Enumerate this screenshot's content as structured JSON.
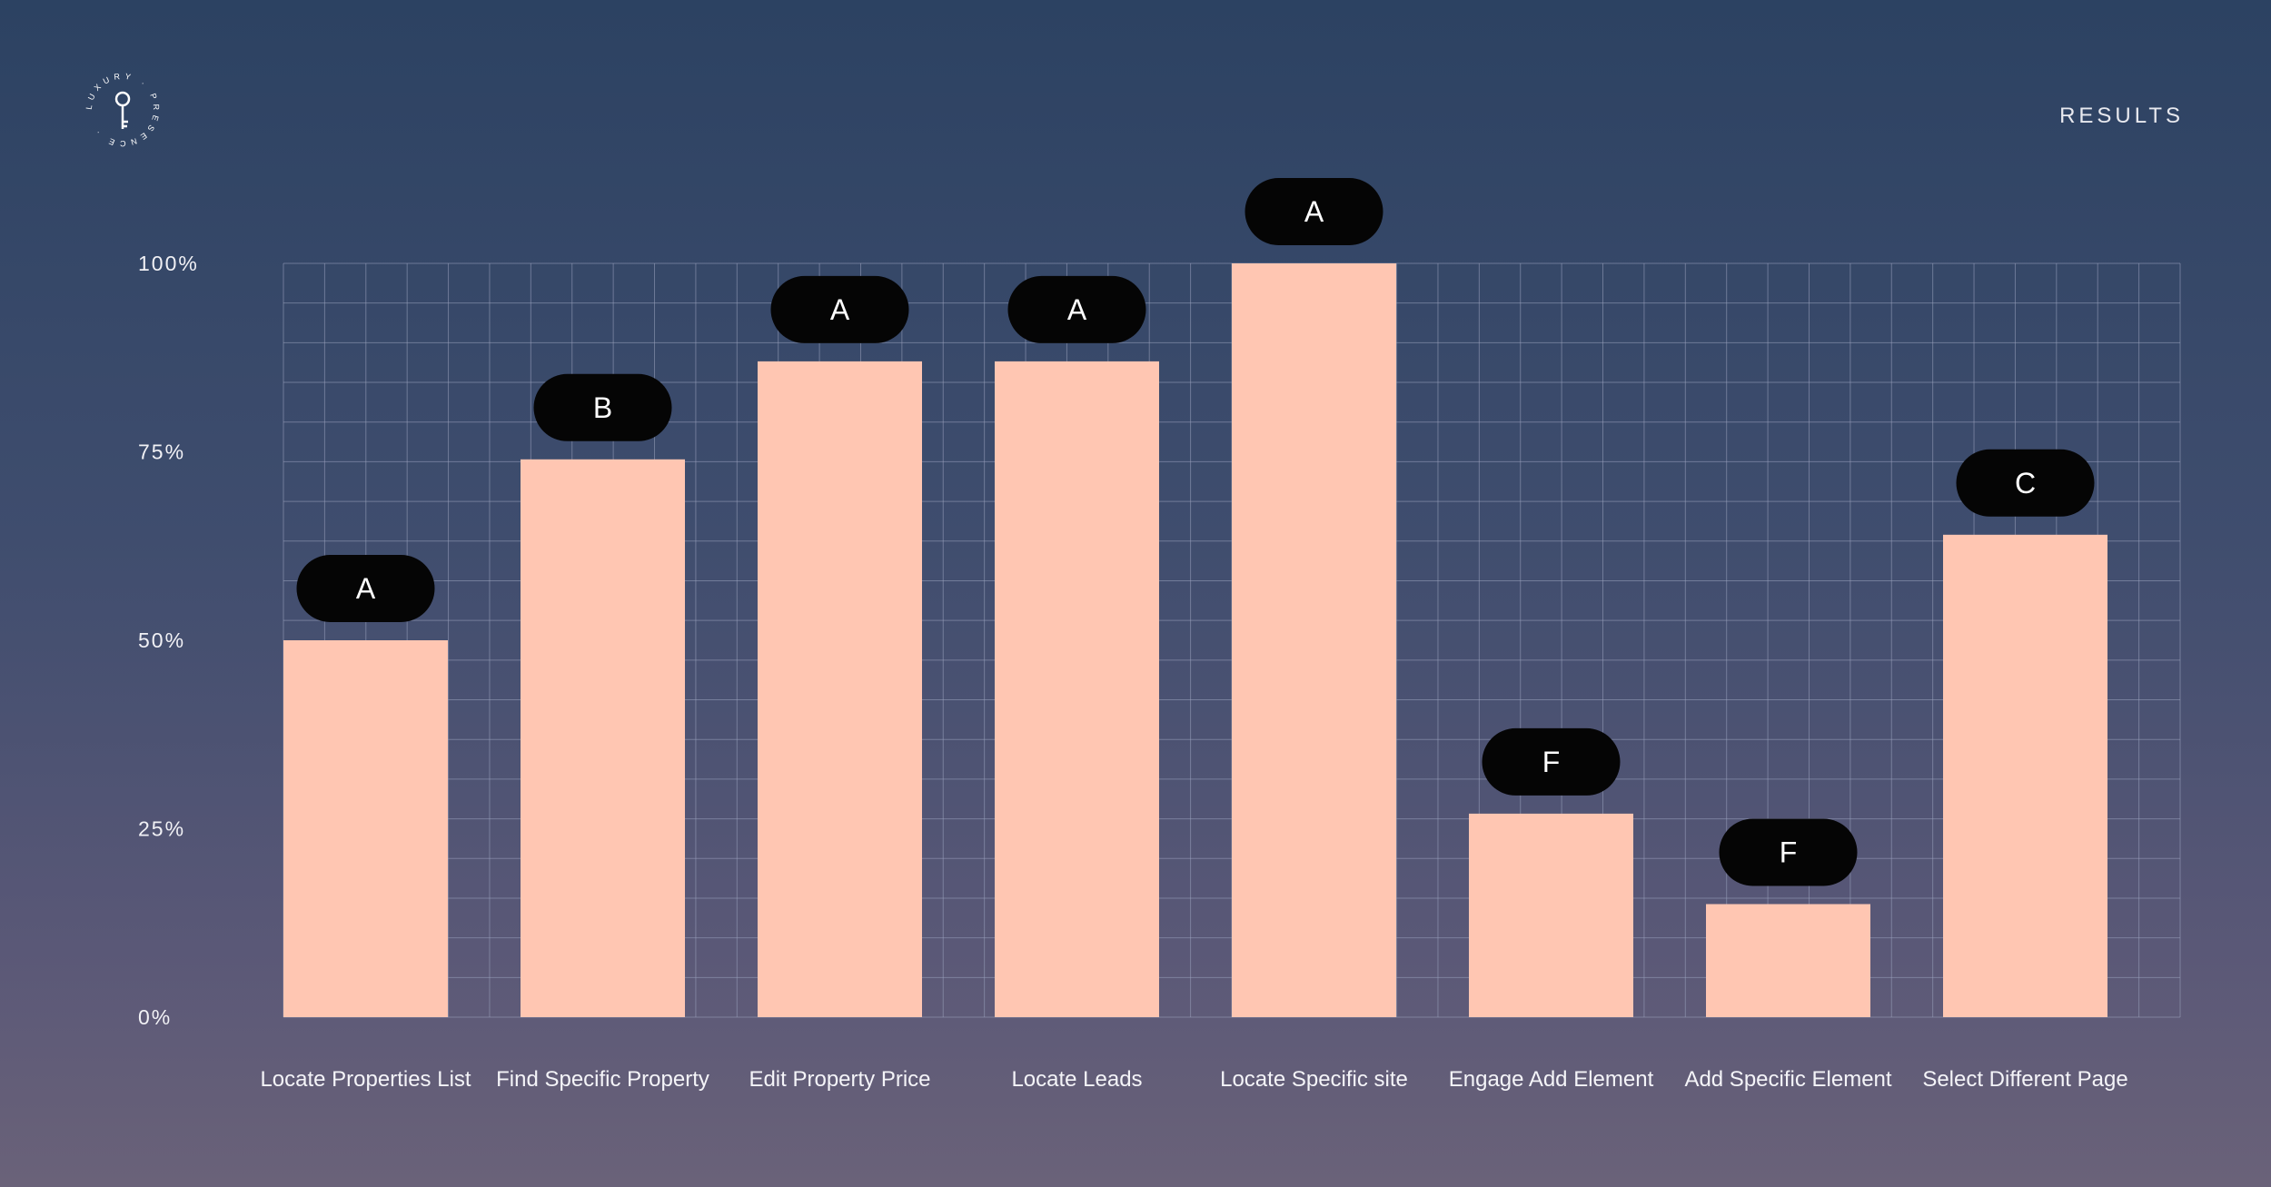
{
  "header": {
    "results_label": "RESULTS"
  },
  "logo": {
    "ring_text": "LUXURY · PRESENCE ·"
  },
  "colors": {
    "bar": "#ffc6b2",
    "grid": "#9aa3bd",
    "badge": "#050505"
  },
  "chart_data": {
    "type": "bar",
    "categories": [
      "Locate Properties List",
      "Find Specific Property",
      "Edit Property Price",
      "Locate Leads",
      "Locate Specific site",
      "Engage Add Element",
      "Add Specific Element",
      "Select Different Page"
    ],
    "values": [
      50,
      74,
      87,
      87,
      100,
      27,
      15,
      64
    ],
    "grades": [
      "A",
      "B",
      "A",
      "A",
      "A",
      "F",
      "F",
      "C"
    ],
    "yticks": [
      "100%",
      "75%",
      "50%",
      "25%",
      "0%"
    ],
    "ytick_values": [
      100,
      75,
      50,
      25,
      0
    ],
    "ylim": [
      0,
      100
    ],
    "xlabel": "",
    "ylabel": "",
    "grid": true
  }
}
